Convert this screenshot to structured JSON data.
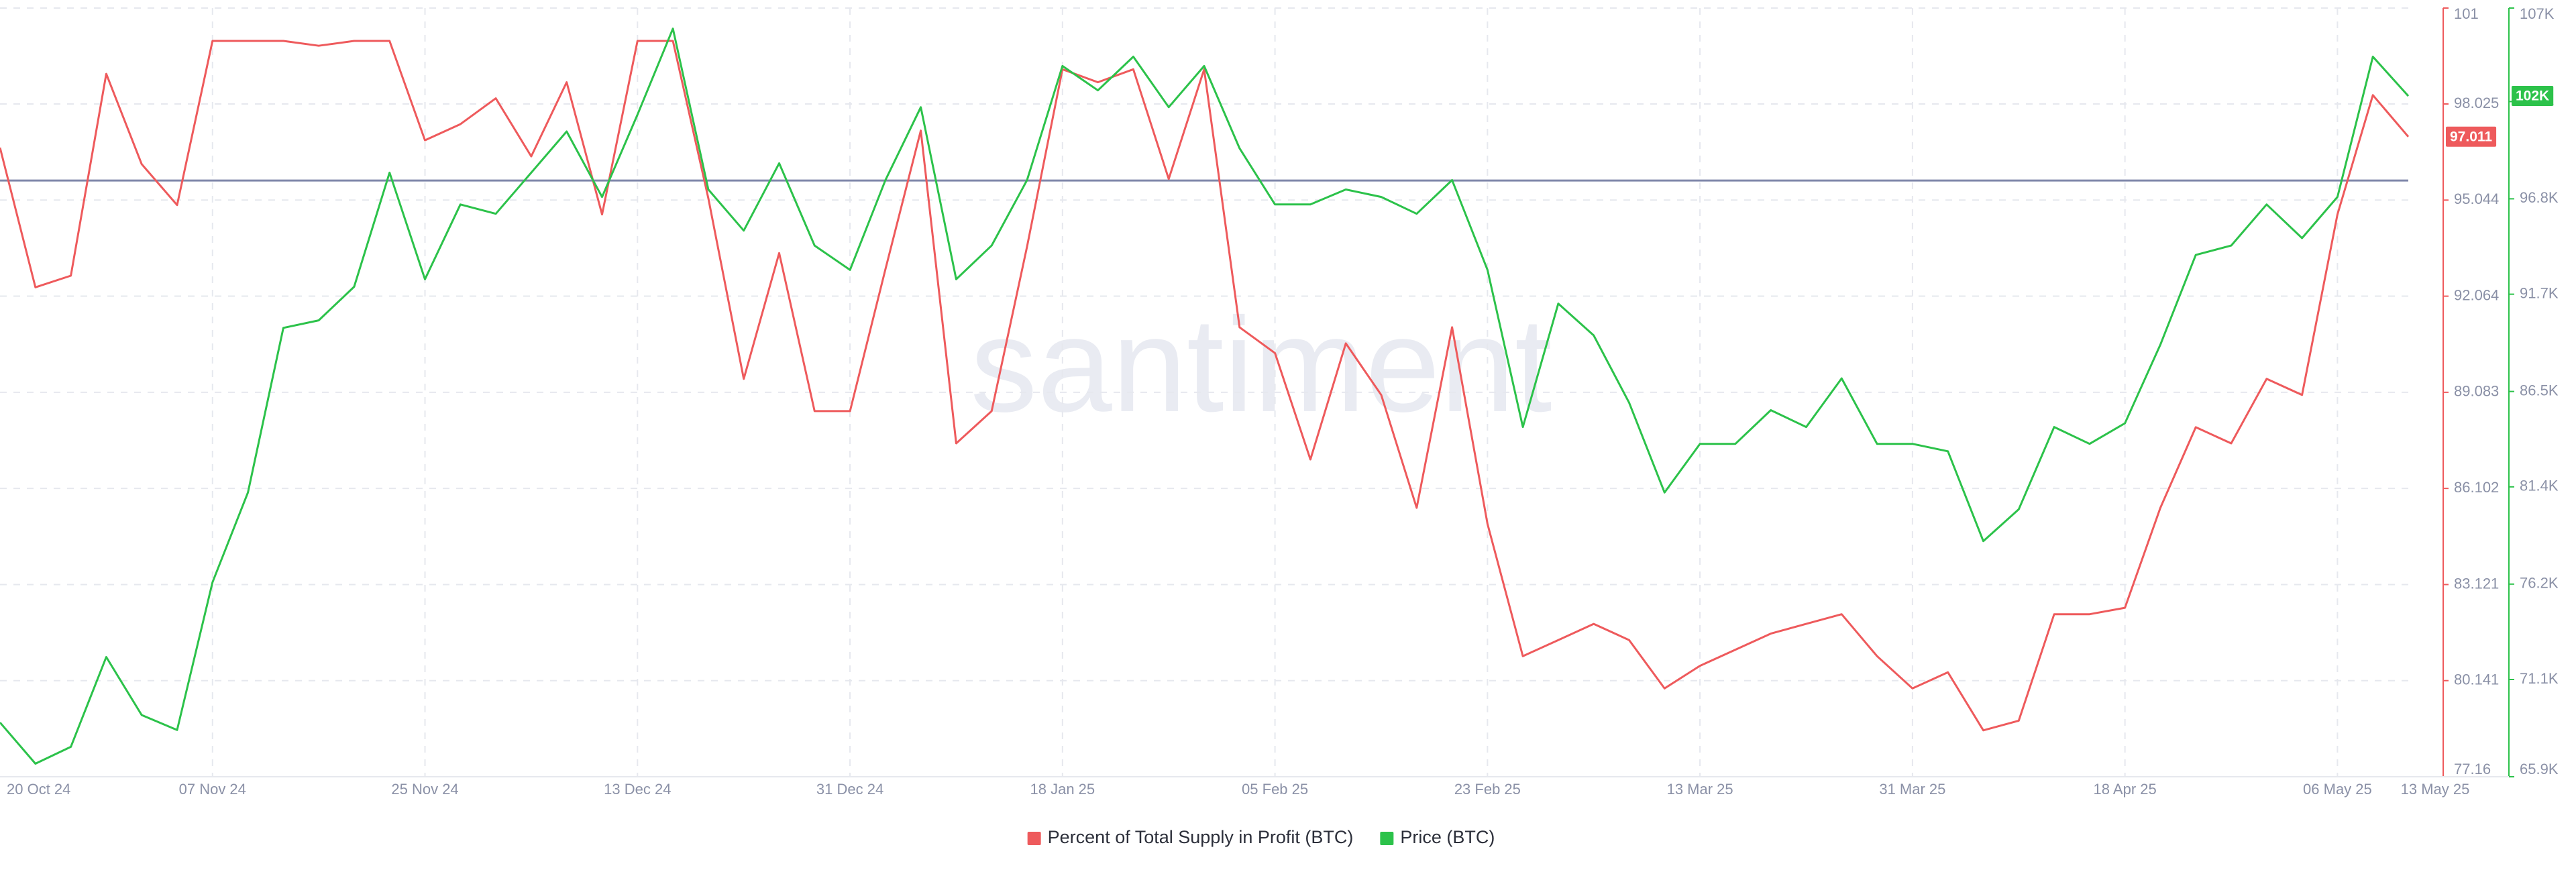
{
  "chart_data": {
    "type": "line",
    "watermark": "santiment",
    "categories": [
      "20 Oct 24",
      null,
      null,
      null,
      null,
      null,
      "07 Nov 24",
      null,
      null,
      null,
      null,
      null,
      "25 Nov 24",
      null,
      null,
      null,
      null,
      null,
      "13 Dec 24",
      null,
      null,
      null,
      null,
      null,
      "31 Dec 24",
      null,
      null,
      null,
      null,
      null,
      "18 Jan 25",
      null,
      null,
      null,
      null,
      null,
      "05 Feb 25",
      null,
      null,
      null,
      null,
      null,
      "23 Feb 25",
      null,
      null,
      null,
      null,
      null,
      "13 Mar 25",
      null,
      null,
      null,
      null,
      null,
      "31 Mar 25",
      null,
      null,
      null,
      null,
      null,
      "18 Apr 25",
      null,
      null,
      null,
      null,
      null,
      "06 May 25",
      null,
      "13 May 25"
    ],
    "series": [
      {
        "name": "Percent of Total Supply in Profit (BTC)",
        "color": "#ee5a5c",
        "axis": "y",
        "last_label": "97.011",
        "values": [
          96.67,
          92.34,
          92.7,
          98.96,
          96.16,
          94.89,
          99.98,
          99.98,
          99.98,
          99.83,
          99.98,
          99.98,
          96.9,
          97.4,
          98.2,
          96.4,
          98.7,
          94.6,
          99.98,
          99.98,
          95.1,
          89.5,
          93.4,
          88.5,
          88.5,
          92.9,
          97.2,
          87.5,
          88.5,
          93.6,
          99.1,
          98.7,
          99.1,
          95.7,
          99.1,
          91.1,
          90.3,
          87.0,
          90.6,
          89.0,
          85.5,
          91.1,
          85.0,
          80.9,
          81.4,
          81.9,
          81.4,
          79.9,
          80.6,
          81.1,
          81.6,
          81.9,
          82.2,
          80.9,
          79.9,
          80.4,
          78.6,
          78.9,
          82.2,
          82.2,
          82.4,
          85.5,
          88.0,
          87.5,
          89.5,
          89.0,
          94.6,
          98.3,
          97.011
        ]
      },
      {
        "name": "Price (BTC)",
        "color": "#2cc24a",
        "axis": "y2",
        "last_label": "102K",
        "values": [
          68800,
          66600,
          67500,
          72300,
          69200,
          68400,
          76300,
          81100,
          89900,
          90300,
          92100,
          98200,
          92500,
          96500,
          96000,
          98200,
          100400,
          96900,
          101300,
          105900,
          97300,
          95100,
          98700,
          94300,
          93000,
          97800,
          101700,
          92500,
          94300,
          97800,
          103900,
          102600,
          104400,
          101700,
          103900,
          99500,
          96500,
          96500,
          97300,
          96900,
          96000,
          97800,
          93000,
          84600,
          91200,
          89500,
          85900,
          81100,
          83700,
          83700,
          85500,
          84600,
          87200,
          83700,
          83700,
          83300,
          78500,
          80200,
          84600,
          83700,
          84800,
          89000,
          93800,
          94300,
          96500,
          94700,
          96900,
          104400,
          102300
        ]
      }
    ],
    "reference_line": {
      "value": 95.65,
      "color": "#7f87aa"
    },
    "ylim": [
      77.16,
      101
    ],
    "yticks": [
      77.16,
      80.141,
      83.121,
      86.102,
      89.083,
      92.064,
      95.044,
      98.025,
      101
    ],
    "y2lim": [
      65900,
      107000
    ],
    "y2ticks": [
      {
        "value": 65900,
        "label": "65.9K"
      },
      {
        "value": 71100,
        "label": "71.1K"
      },
      {
        "value": 76200,
        "label": "76.2K"
      },
      {
        "value": 81400,
        "label": "81.4K"
      },
      {
        "value": 86500,
        "label": "86.5K"
      },
      {
        "value": 91700,
        "label": "91.7K"
      },
      {
        "value": 96800,
        "label": "96.8K"
      },
      {
        "value": 102000,
        "label": "102K"
      },
      {
        "value": 107000,
        "label": "107K"
      }
    ],
    "grid": true,
    "legend": "bottom"
  }
}
